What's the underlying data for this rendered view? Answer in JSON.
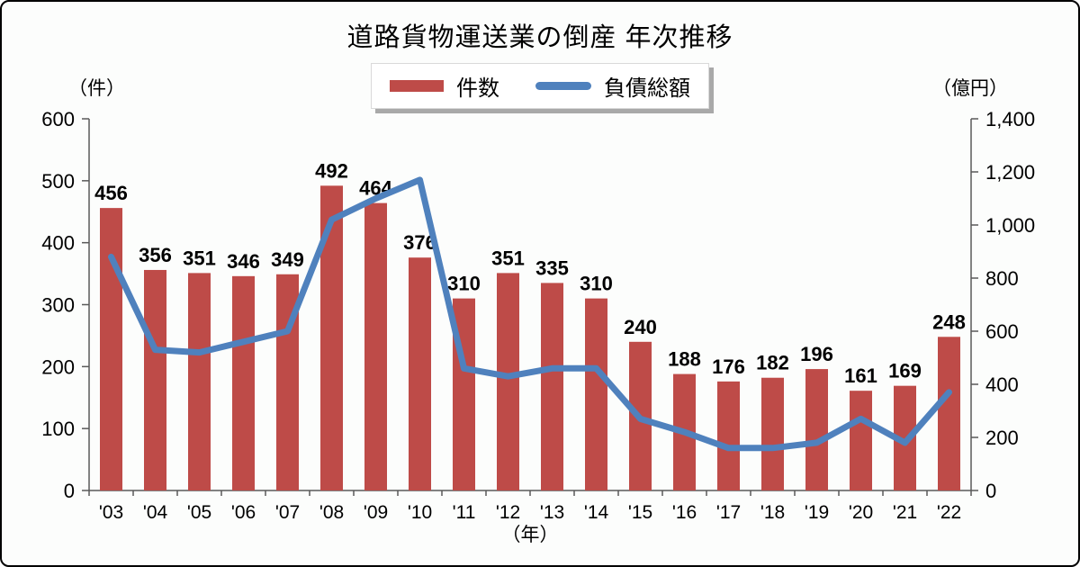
{
  "page": {
    "title": "道路貨物運送業の倒産  年次推移"
  },
  "legend": {
    "bar_label": "件数",
    "line_label": "負債総額"
  },
  "axes": {
    "left_title": "（件）",
    "right_title": "（億円）",
    "x_title": "（年）",
    "left_ticks": [
      "0",
      "100",
      "200",
      "300",
      "400",
      "500",
      "600"
    ],
    "right_ticks": [
      "0",
      "200",
      "400",
      "600",
      "800",
      "1,000",
      "1,200",
      "1,400"
    ]
  },
  "colors": {
    "bar": "#be4b48",
    "line": "#4f81bd",
    "axis": "#595959"
  },
  "chart_data": {
    "type": "bar",
    "subtype": "bar+line dual axis",
    "title": "道路貨物運送業の倒産  年次推移",
    "categories": [
      "'03",
      "'04",
      "'05",
      "'06",
      "'07",
      "'08",
      "'09",
      "'10",
      "'11",
      "'12",
      "'13",
      "'14",
      "'15",
      "'16",
      "'17",
      "'18",
      "'19",
      "'20",
      "'21",
      "'22"
    ],
    "series": [
      {
        "name": "件数",
        "type": "bar",
        "axis": "left",
        "values": [
          456,
          356,
          351,
          346,
          349,
          492,
          464,
          376,
          310,
          351,
          335,
          310,
          240,
          188,
          176,
          182,
          196,
          161,
          169,
          248
        ]
      },
      {
        "name": "負債総額",
        "type": "line",
        "axis": "right",
        "values": [
          880,
          530,
          520,
          560,
          600,
          1020,
          1100,
          1170,
          460,
          430,
          460,
          460,
          270,
          220,
          160,
          160,
          180,
          270,
          180,
          370
        ]
      }
    ],
    "left_axis": {
      "label": "（件）",
      "min": 0,
      "max": 600,
      "step": 100
    },
    "right_axis": {
      "label": "（億円）",
      "min": 0,
      "max": 1400,
      "step": 200
    },
    "x_label": "（年）",
    "grid": false,
    "legend_position": "top",
    "data_labels": "bar series only"
  }
}
